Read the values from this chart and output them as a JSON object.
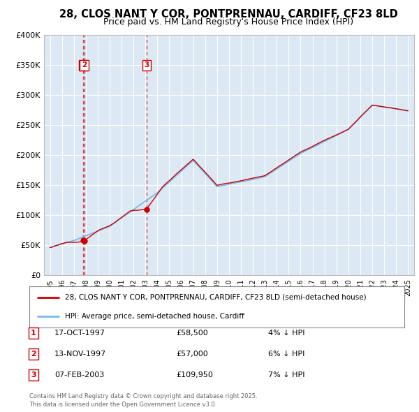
{
  "title": "28, CLOS NANT Y COR, PONTPRENNAU, CARDIFF, CF23 8LD",
  "subtitle": "Price paid vs. HM Land Registry's House Price Index (HPI)",
  "legend_line1": "28, CLOS NANT Y COR, PONTPRENNAU, CARDIFF, CF23 8LD (semi-detached house)",
  "legend_line2": "HPI: Average price, semi-detached house, Cardiff",
  "footer1": "Contains HM Land Registry data © Crown copyright and database right 2025.",
  "footer2": "This data is licensed under the Open Government Licence v3.0.",
  "sales": [
    {
      "num": 1,
      "date": "17-OCT-1997",
      "price": "58,500",
      "pct": "4%",
      "dir": "↓"
    },
    {
      "num": 2,
      "date": "13-NOV-1997",
      "price": "57,000",
      "pct": "6%",
      "dir": "↓"
    },
    {
      "num": 3,
      "date": "07-FEB-2003",
      "price": "109,950",
      "pct": "7%",
      "dir": "↓"
    }
  ],
  "sale_years": [
    1997.79,
    1997.87,
    2003.1
  ],
  "sale_prices": [
    58500,
    57000,
    109950
  ],
  "ylim": [
    0,
    400000
  ],
  "xlim_start": 1994.5,
  "xlim_end": 2025.5,
  "bg_color": "#dce9f5",
  "grid_color": "#ffffff",
  "red_color": "#cc0000",
  "blue_color": "#7ab8e8",
  "dashed_vline_color": "#cc4444"
}
